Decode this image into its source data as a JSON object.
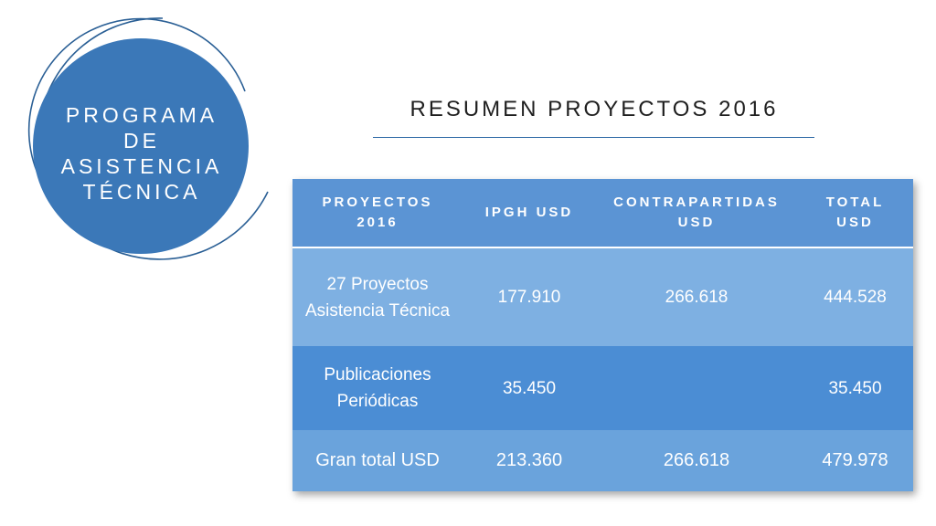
{
  "circle": {
    "title_lines": [
      "PROGRAMA",
      "DE",
      "ASISTENCIA",
      "TÉCNICA"
    ]
  },
  "slide": {
    "title": "RESUMEN PROYECTOS 2016"
  },
  "table": {
    "headers": [
      [
        "PROYECTOS",
        "2016"
      ],
      [
        "IPGH USD"
      ],
      [
        "CONTRAPARTIDAS",
        "USD"
      ],
      [
        "TOTAL",
        "USD"
      ]
    ],
    "rows": [
      {
        "label_lines": [
          "27 Proyectos",
          "Asistencia Técnica"
        ],
        "ipgh": "177.910",
        "contrapartidas": "266.618",
        "total": "444.528"
      },
      {
        "label_lines": [
          "Publicaciones",
          "Periódicas"
        ],
        "ipgh": "35.450",
        "contrapartidas": "",
        "total": "35.450"
      },
      {
        "label_lines": [
          "Gran total USD"
        ],
        "ipgh": "213.360",
        "contrapartidas": "266.618",
        "total": "479.978"
      }
    ]
  },
  "colors": {
    "circle_fill": "#3b78b8",
    "ring_stroke": "#2a5f95",
    "header_bg": "#5b94d4",
    "row1_bg": "#7eb0e2",
    "row2_bg": "#4b8dd4",
    "row3_bg": "#6aa3dc",
    "title_rule": "#2e6aa6"
  }
}
